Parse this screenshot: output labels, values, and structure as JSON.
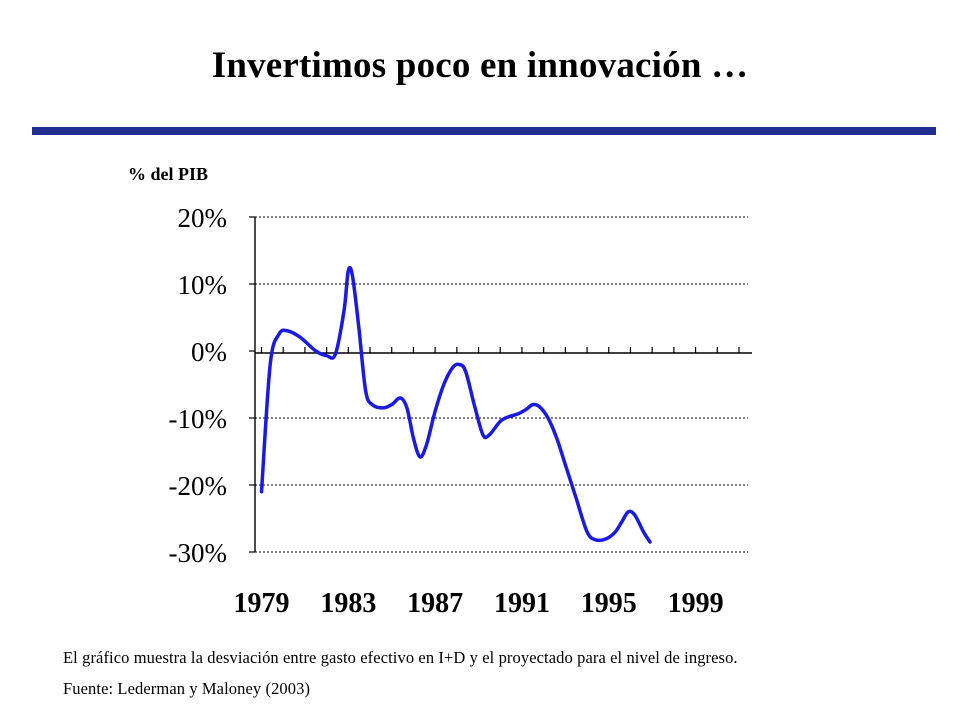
{
  "slide": {
    "title": "Invertimos poco en innovación …",
    "caption": "El gráfico muestra la desviación entre gasto efectivo en I+D y el proyectado para el nivel de ingreso.",
    "source": "Fuente: Lederman y Maloney (2003)"
  },
  "colors": {
    "line": "#1a1ae6",
    "rule": "#1f2f8f",
    "grid": "#000000"
  },
  "chart_data": {
    "type": "line",
    "ylabel": "% del PIB",
    "xlabel": "",
    "title": "",
    "ylim": [
      -30,
      20
    ],
    "yticks": [
      20,
      10,
      0,
      -10,
      -20,
      -30
    ],
    "ytick_labels": [
      "20%",
      "10%",
      "0%",
      "-10%",
      "-20%",
      "-30%"
    ],
    "xlim": [
      1978.7,
      2001.6
    ],
    "xtick_labels": [
      "1979",
      "1983",
      "1987",
      "1991",
      "1995",
      "1999"
    ],
    "xtick_positions": [
      1979,
      1983,
      1987,
      1991,
      1995,
      1999
    ],
    "grid": "dotted horizontal",
    "series": [
      {
        "values": [
          [
            1979.0,
            -21
          ],
          [
            1979.4,
            -2
          ],
          [
            1979.8,
            2.5
          ],
          [
            1980.2,
            3
          ],
          [
            1980.8,
            2
          ],
          [
            1981.5,
            0
          ],
          [
            1982.0,
            -0.7
          ],
          [
            1982.4,
            -0.5
          ],
          [
            1982.8,
            6
          ],
          [
            1983.0,
            12
          ],
          [
            1983.2,
            11
          ],
          [
            1983.5,
            3
          ],
          [
            1983.8,
            -6
          ],
          [
            1984.1,
            -8
          ],
          [
            1984.6,
            -8.5
          ],
          [
            1985.0,
            -8
          ],
          [
            1985.4,
            -7
          ],
          [
            1985.7,
            -8.5
          ],
          [
            1986.0,
            -13
          ],
          [
            1986.3,
            -15.8
          ],
          [
            1986.6,
            -14
          ],
          [
            1987.0,
            -9
          ],
          [
            1987.4,
            -5
          ],
          [
            1987.8,
            -2.5
          ],
          [
            1988.1,
            -2
          ],
          [
            1988.4,
            -3
          ],
          [
            1988.8,
            -8
          ],
          [
            1989.2,
            -12.5
          ],
          [
            1989.5,
            -12.5
          ],
          [
            1990.0,
            -10.5
          ],
          [
            1990.4,
            -9.8
          ],
          [
            1990.8,
            -9.4
          ],
          [
            1991.2,
            -8.7
          ],
          [
            1991.5,
            -8
          ],
          [
            1991.8,
            -8.3
          ],
          [
            1992.2,
            -10
          ],
          [
            1992.6,
            -13
          ],
          [
            1993.0,
            -17
          ],
          [
            1993.5,
            -22
          ],
          [
            1994.0,
            -27
          ],
          [
            1994.4,
            -28.2
          ],
          [
            1994.9,
            -28
          ],
          [
            1995.3,
            -27
          ],
          [
            1995.6,
            -25.5
          ],
          [
            1995.9,
            -24
          ],
          [
            1996.2,
            -24.5
          ],
          [
            1996.6,
            -27
          ],
          [
            1996.9,
            -28.5
          ]
        ]
      }
    ]
  }
}
